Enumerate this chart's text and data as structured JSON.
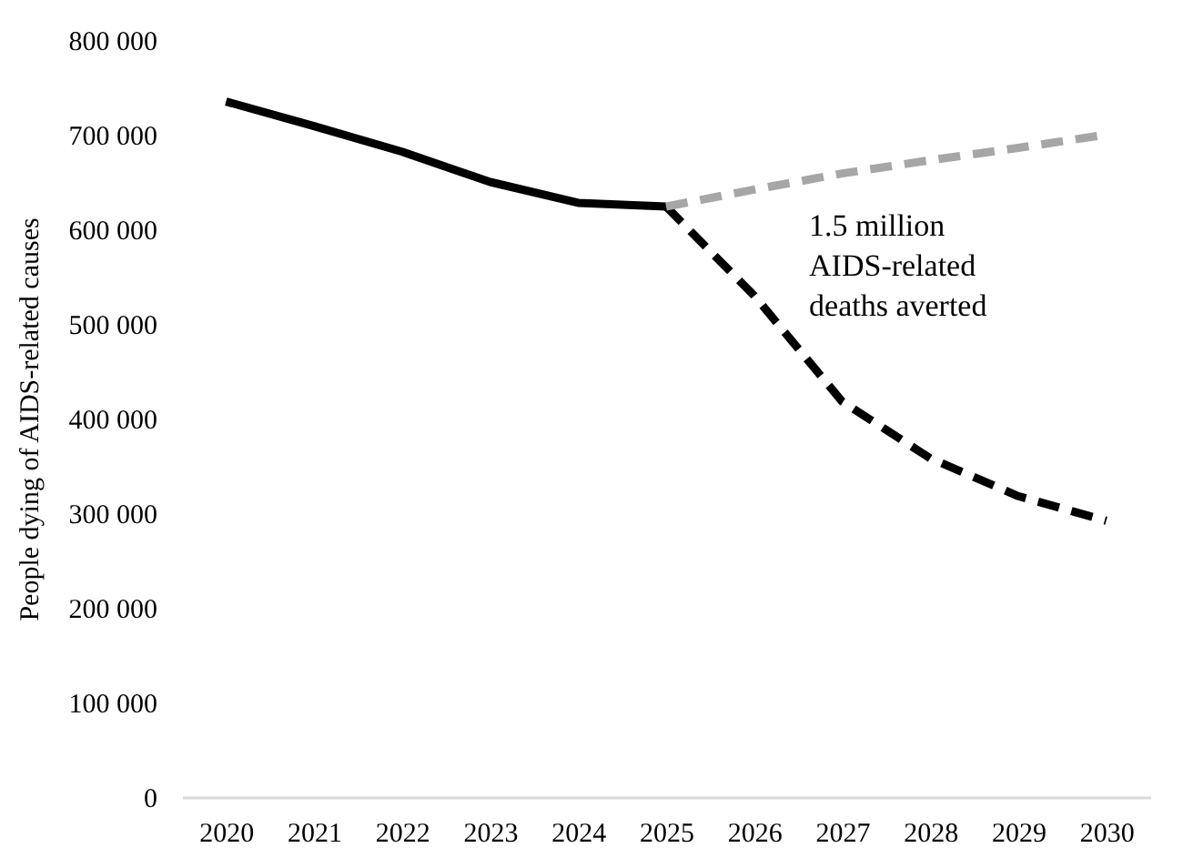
{
  "chart_data": {
    "type": "line",
    "ylabel": "People dying of AIDS-related causes",
    "categories": [
      "2020",
      "2021",
      "2022",
      "2023",
      "2024",
      "2025",
      "2026",
      "2027",
      "2028",
      "2029",
      "2030"
    ],
    "series": [
      {
        "color": "#000000",
        "line_style": "solid",
        "values": [
          735000,
          709000,
          682000,
          650000,
          628000,
          624000,
          null,
          null,
          null,
          null,
          null
        ]
      },
      {
        "color": "#000000",
        "line_style": "dashed",
        "values": [
          null,
          null,
          null,
          null,
          null,
          624000,
          530000,
          418000,
          358000,
          318000,
          292000
        ]
      },
      {
        "color": "#a6a6a6",
        "line_style": "dashed",
        "values": [
          null,
          null,
          null,
          null,
          null,
          624000,
          642000,
          659000,
          673000,
          686000,
          700000
        ]
      }
    ],
    "ylim": [
      0,
      800000
    ],
    "yticks": [
      {
        "value": 0,
        "label": "0"
      },
      {
        "value": 100000,
        "label": "100 000"
      },
      {
        "value": 200000,
        "label": "200 000"
      },
      {
        "value": 300000,
        "label": "300 000"
      },
      {
        "value": 400000,
        "label": "400 000"
      },
      {
        "value": 500000,
        "label": "500 000"
      },
      {
        "value": 600000,
        "label": "600 000"
      },
      {
        "value": 700000,
        "label": "700 000"
      },
      {
        "value": 800000,
        "label": "800 000"
      }
    ],
    "grid": false,
    "marker": "none",
    "annotations": [
      "1.5 million\nAIDS-related\ndeaths averted"
    ]
  }
}
